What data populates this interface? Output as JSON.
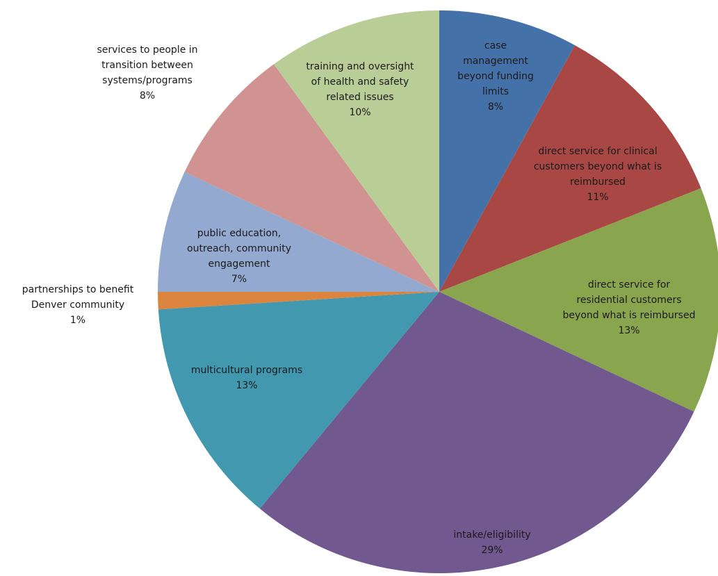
{
  "chart_data": {
    "type": "pie",
    "start_angle_deg": 0,
    "direction": "clockwise",
    "legend": "none",
    "slices": [
      {
        "label": "case management beyond funding limits",
        "label_lines": [
          "case",
          "management",
          "beyond funding",
          "limits"
        ],
        "value": 8,
        "percent_label": "8%",
        "color": "#4472A8"
      },
      {
        "label": "direct service for clinical customers beyond what is reimbursed",
        "label_lines": [
          "direct service for clinical",
          "customers beyond what is",
          "reimbursed"
        ],
        "value": 11,
        "percent_label": "11%",
        "color": "#A94744"
      },
      {
        "label": "direct service for residential customers beyond what is reimbursed",
        "label_lines": [
          "direct service for",
          "residential customers",
          "beyond what is reimbursed"
        ],
        "value": 13,
        "percent_label": "13%",
        "color": "#89A54E"
      },
      {
        "label": "intake/eligibility",
        "label_lines": [
          "intake/eligibility"
        ],
        "value": 29,
        "percent_label": "29%",
        "color": "#71588F"
      },
      {
        "label": "multicultural programs",
        "label_lines": [
          "multicultural programs"
        ],
        "value": 13,
        "percent_label": "13%",
        "color": "#4198AF"
      },
      {
        "label": "partnerships to benefit Denver community",
        "label_lines": [
          "partnerships to benefit",
          "Denver community"
        ],
        "value": 1,
        "percent_label": "1%",
        "color": "#DB843D"
      },
      {
        "label": "public education, outreach, community engagement",
        "label_lines": [
          "public education,",
          "outreach, community",
          "engagement"
        ],
        "value": 7,
        "percent_label": "7%",
        "color": "#93A9CF"
      },
      {
        "label": "services to people in transition between systems/programs",
        "label_lines": [
          "services to people in",
          "transition between",
          "systems/programs"
        ],
        "value": 8,
        "percent_label": "8%",
        "color": "#D19392"
      },
      {
        "label": "training and oversight of health and safety related issues",
        "label_lines": [
          "training and oversight",
          "of health and safety",
          "related issues"
        ],
        "value": 10,
        "percent_label": "10%",
        "color": "#B9CD96"
      }
    ]
  }
}
